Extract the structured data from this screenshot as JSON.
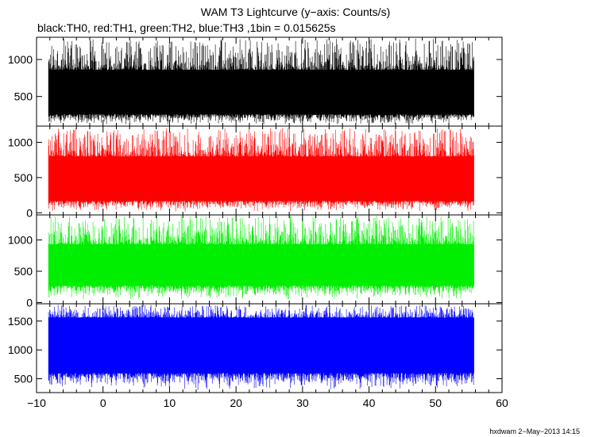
{
  "title": "WAM T3 Lightcurve (y−axis: Counts/s)",
  "subtitle": "black:TH0, red:TH1, green:TH2, blue:TH3 ,1bin = 0.015625s",
  "footer": "hxdwam  2−May−2013 14:15",
  "chart_data": {
    "type": "line",
    "title": "WAM T3 Lightcurve (y−axis: Counts/s)",
    "subtitle": "black:TH0, red:TH1, green:TH2, blue:TH3 ,1bin = 0.015625s",
    "xlabel": "",
    "ylabel": "",
    "xlim": [
      -10,
      60
    ],
    "x_ticks": [
      -10,
      0,
      10,
      20,
      30,
      40,
      50,
      60
    ],
    "x_tick_labels": [
      "−10",
      "0",
      "10",
      "20",
      "30",
      "40",
      "50",
      "60"
    ],
    "x_data_range": [
      -8.2,
      55.8
    ],
    "bin_size_s": 0.015625,
    "grid": false,
    "series": [
      {
        "name": "TH0",
        "color": "#000000",
        "ylim": [
          100,
          1300
        ],
        "y_ticks": [
          500,
          1000
        ],
        "y_tick_labels": [
          "500",
          "1000"
        ],
        "mean": 560,
        "band": [
          260,
          860
        ],
        "peak_max": 1280,
        "dip_min": 110
      },
      {
        "name": "TH1",
        "color": "#ff0000",
        "ylim": [
          -30,
          1230
        ],
        "y_ticks": [
          0,
          500,
          1000
        ],
        "y_tick_labels": [
          "0",
          "500",
          "1000"
        ],
        "mean": 460,
        "band": [
          170,
          800
        ],
        "peak_max": 1200,
        "dip_min": 10
      },
      {
        "name": "TH2",
        "color": "#00ee00",
        "ylim": [
          -20,
          1400
        ],
        "y_ticks": [
          0,
          500,
          1000
        ],
        "y_tick_labels": [
          "0",
          "500",
          "1000"
        ],
        "mean": 580,
        "band": [
          270,
          930
        ],
        "peak_max": 1390,
        "dip_min": 40
      },
      {
        "name": "TH3",
        "color": "#0000ff",
        "ylim": [
          260,
          1800
        ],
        "y_ticks": [
          500,
          1000,
          1500
        ],
        "y_tick_labels": [
          "500",
          "1000",
          "1500"
        ],
        "mean": 1000,
        "band": [
          600,
          1560
        ],
        "peak_max": 1780,
        "dip_min": 300
      }
    ]
  }
}
